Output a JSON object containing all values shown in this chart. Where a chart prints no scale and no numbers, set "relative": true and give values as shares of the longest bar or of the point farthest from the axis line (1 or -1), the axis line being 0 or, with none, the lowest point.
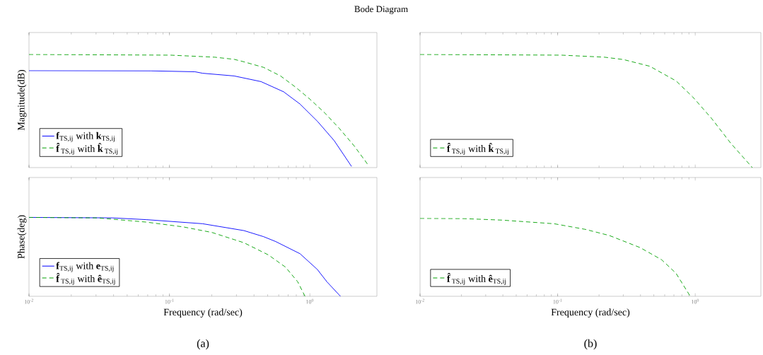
{
  "chart_data": [
    {
      "type": "line",
      "title": "Bode Diagram",
      "ylabel": "Magnitude(dB)",
      "relative": true,
      "log": "x",
      "xlim": [
        0.01,
        3
      ],
      "xticks": [
        {
          "value": 0.01,
          "label": null
        },
        {
          "value": 0.1,
          "label": null
        },
        {
          "value": 1,
          "label": null
        }
      ],
      "tick_labels": false,
      "legend": "bottom left",
      "series": [
        {
          "name": "**f**$_{TS,ij}$ with **k**$_{TS,ij}$",
          "color": "#0000ff",
          "line_style": "solid",
          "x": [
            0.01,
            0.074,
            0.152,
            0.172,
            0.289,
            0.449,
            0.65,
            0.85,
            1.13,
            1.49,
            1.98
          ],
          "values": [
            0.857,
            0.855,
            0.847,
            0.834,
            0.81,
            0.76,
            0.67,
            0.562,
            0.41,
            0.238,
            0.01
          ]
        },
        {
          "name": "**f̂**$_{TS,ij}$ with **k̂**$_{TS,ij}$",
          "color": "#00a000",
          "line_style": "dashed",
          "x": [
            0.01,
            0.102,
            0.21,
            0.289,
            0.339,
            0.468,
            0.618,
            0.787,
            1.0,
            1.27,
            1.62,
            2.06,
            2.61
          ],
          "values": [
            1.0,
            0.994,
            0.976,
            0.957,
            0.935,
            0.886,
            0.81,
            0.713,
            0.605,
            0.486,
            0.346,
            0.194,
            0.02
          ]
        }
      ]
    },
    {
      "type": "line",
      "relative": true,
      "log": "x",
      "xlim": [
        0.01,
        3
      ],
      "xticks": [
        {
          "value": 0.01,
          "label": null
        },
        {
          "value": 0.1,
          "label": null
        },
        {
          "value": 1,
          "label": null
        }
      ],
      "tick_labels": false,
      "legend": "bottom left",
      "series": [
        {
          "name": "**f̂**$_{TS,ij}$ with **k̂**$_{TS,ij}$",
          "color": "#00a000",
          "line_style": "dashed",
          "x": [
            0.01,
            0.107,
            0.219,
            0.301,
            0.467,
            0.724,
            0.957,
            1.32,
            1.81,
            2.6
          ],
          "values": [
            1.0,
            0.994,
            0.976,
            0.955,
            0.896,
            0.767,
            0.626,
            0.432,
            0.216,
            0.0
          ]
        }
      ]
    },
    {
      "type": "line",
      "xlabel": "Frequency (rad/sec)",
      "ylabel": "Phase(deg)",
      "annotations": [
        "(a)"
      ],
      "relative": true,
      "log": "x",
      "xlim": [
        0.01,
        3
      ],
      "xticks": [
        {
          "value": 0.01,
          "label": "10$^{-2}$"
        },
        {
          "value": 0.1,
          "label": "10$^{-1}$"
        },
        {
          "value": 1,
          "label": "10$^{0}$"
        }
      ],
      "tick_labels": "x",
      "legend": "bottom left",
      "series": [
        {
          "name": "**f**$_{TS,ij}$ with **e**$_{TS,ij}$",
          "color": "#0000ff",
          "line_style": "solid",
          "x": [
            0.01,
            0.039,
            0.068,
            0.172,
            0.339,
            0.468,
            0.571,
            0.85,
            1.13,
            1.32,
            1.65
          ],
          "values": [
            1.0,
            0.994,
            0.972,
            0.92,
            0.833,
            0.756,
            0.694,
            0.54,
            0.34,
            0.185,
            0.0
          ]
        },
        {
          "name": "**f̂**$_{TS,ij}$ with **ê**$_{TS,ij}$",
          "color": "#00a000",
          "line_style": "dashed",
          "x": [
            0.01,
            0.0306,
            0.068,
            0.125,
            0.201,
            0.339,
            0.506,
            0.67,
            0.818,
            0.923
          ],
          "values": [
            1.0,
            0.994,
            0.941,
            0.88,
            0.809,
            0.679,
            0.525,
            0.37,
            0.185,
            0.0
          ]
        }
      ]
    },
    {
      "type": "line",
      "xlabel": "Frequency (rad/sec)",
      "annotations": [
        "(b)"
      ],
      "relative": true,
      "log": "x",
      "xlim": [
        0.01,
        3
      ],
      "xticks": [
        {
          "value": 0.01,
          "label": "10$^{-2}$"
        },
        {
          "value": 0.1,
          "label": "10$^{-1}$"
        },
        {
          "value": 1,
          "label": "10$^{0}$"
        }
      ],
      "tick_labels": "x",
      "legend": "bottom left",
      "series": [
        {
          "name": "**f̂**$_{TS,ij}$ with **ê**$_{TS,ij}$",
          "color": "#00a000",
          "line_style": "dashed",
          "x": [
            0.01,
            0.0208,
            0.0393,
            0.0946,
            0.159,
            0.237,
            0.398,
            0.57,
            0.724,
            0.92
          ],
          "values": [
            1.0,
            0.997,
            0.978,
            0.931,
            0.859,
            0.781,
            0.625,
            0.469,
            0.297,
            0.0
          ]
        }
      ]
    }
  ]
}
